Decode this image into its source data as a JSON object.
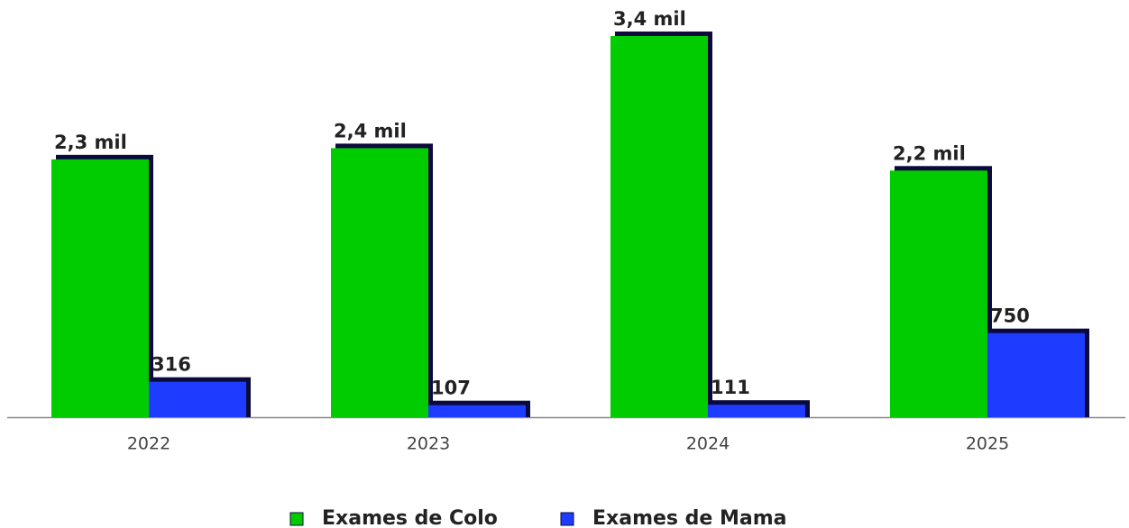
{
  "chart_data": {
    "type": "bar",
    "categories": [
      "2022",
      "2023",
      "2024",
      "2025"
    ],
    "series": [
      {
        "name": "Exames de Colo",
        "color": "#00cc00",
        "values": [
          2300,
          2400,
          3400,
          2200
        ],
        "value_labels": [
          "2,3 mil",
          "2,4 mil",
          "3,4 mil",
          "2,2 mil"
        ]
      },
      {
        "name": "Exames de Mama",
        "color": "#1e3cff",
        "values": [
          316,
          107,
          111,
          750
        ],
        "value_labels": [
          "316",
          "107",
          "111",
          "750"
        ]
      }
    ],
    "legend": "bottom"
  }
}
